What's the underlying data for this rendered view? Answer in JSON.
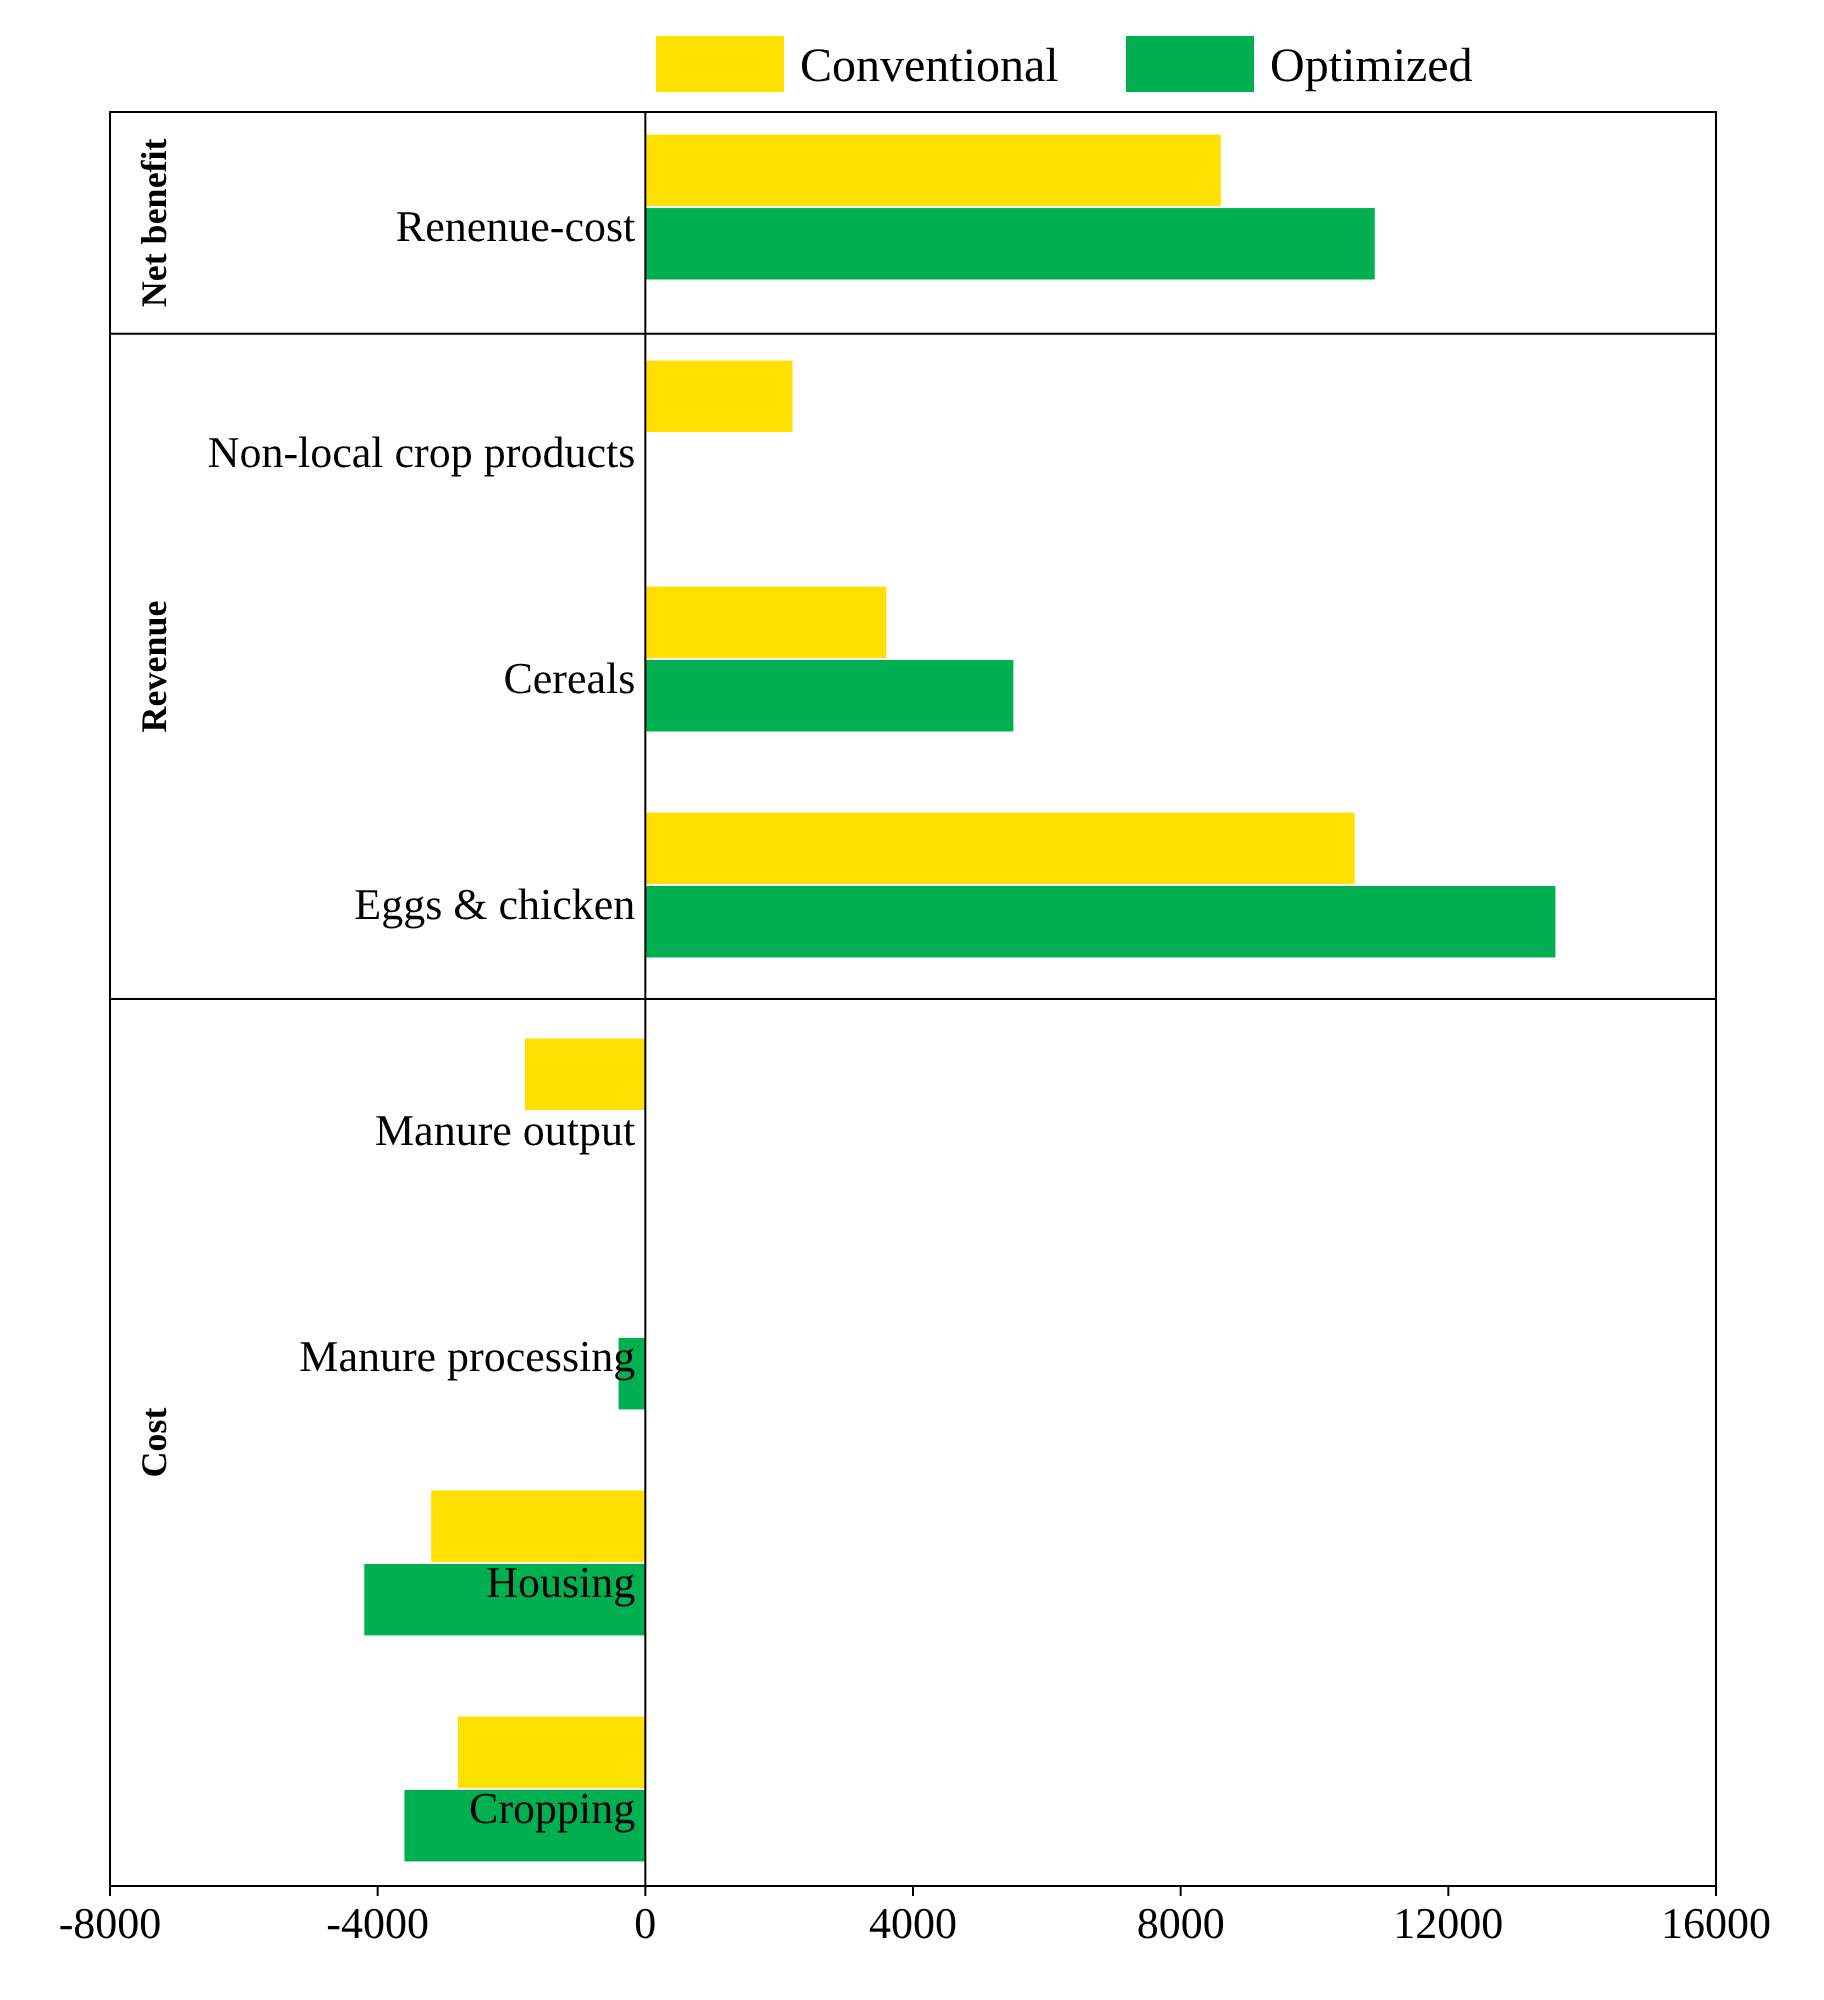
{
  "chart_data": {
    "type": "bar",
    "orientation": "horizontal",
    "categories": [
      "Renenue-cost",
      "Non-local crop products",
      "Cereals",
      "Eggs & chicken",
      "Manure output",
      "Manure processing",
      "Housing",
      "Cropping"
    ],
    "series": [
      {
        "name": "Conventional",
        "color": "#ffe000",
        "values": [
          8600,
          2200,
          3600,
          10600,
          -1800,
          null,
          -3200,
          -2800
        ]
      },
      {
        "name": "Optimized",
        "color": "#00b050",
        "values": [
          10900,
          null,
          5500,
          13600,
          null,
          -400,
          -4200,
          -3600
        ]
      }
    ],
    "xlim": [
      -8000,
      16000
    ],
    "xticks": [
      -8000,
      -4000,
      0,
      4000,
      8000,
      12000,
      16000
    ],
    "annotations": [
      "Net benefit",
      "Revenue",
      "Cost"
    ],
    "legend": "top right",
    "grid": false
  }
}
